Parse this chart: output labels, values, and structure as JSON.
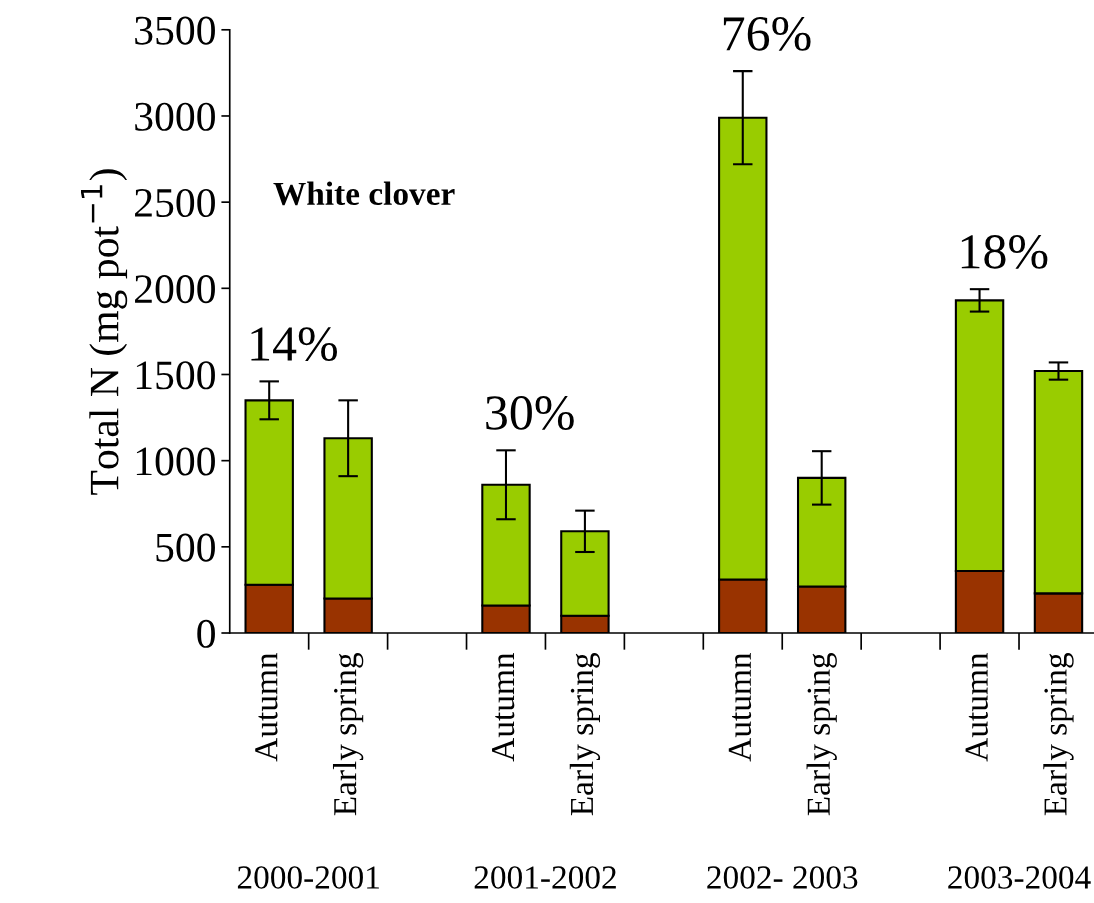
{
  "chart_data": {
    "type": "bar",
    "stacked": true,
    "ylabel": "Total N (mg pot$^{−1}$)",
    "categories": [
      "Autumn",
      "Early spring",
      null,
      "Autumn",
      "Early spring",
      null,
      "Autumn",
      "Early spring",
      null,
      "Autumn",
      "Early spring"
    ],
    "series": [
      {
        "color": "#993300",
        "values": [
          280,
          200,
          null,
          160,
          100,
          null,
          310,
          270,
          null,
          360,
          230
        ]
      },
      {
        "color": "#99cc00",
        "values": [
          1070,
          930,
          null,
          700,
          490,
          null,
          2680,
          630,
          null,
          1570,
          1290
        ],
        "errors": [
          110,
          220,
          null,
          200,
          120,
          null,
          270,
          155,
          null,
          65,
          50
        ]
      }
    ],
    "ylim": [
      0,
      3500
    ],
    "yticks": [
      0,
      500,
      1000,
      1500,
      2000,
      2500,
      3000,
      3500
    ],
    "grid": false,
    "legend": false,
    "annotations": [
      "White clover",
      "14%",
      "30%",
      "76%",
      "18%",
      "2000-2001",
      "2001-2002",
      "2002- 2003",
      "2003-2004"
    ]
  }
}
